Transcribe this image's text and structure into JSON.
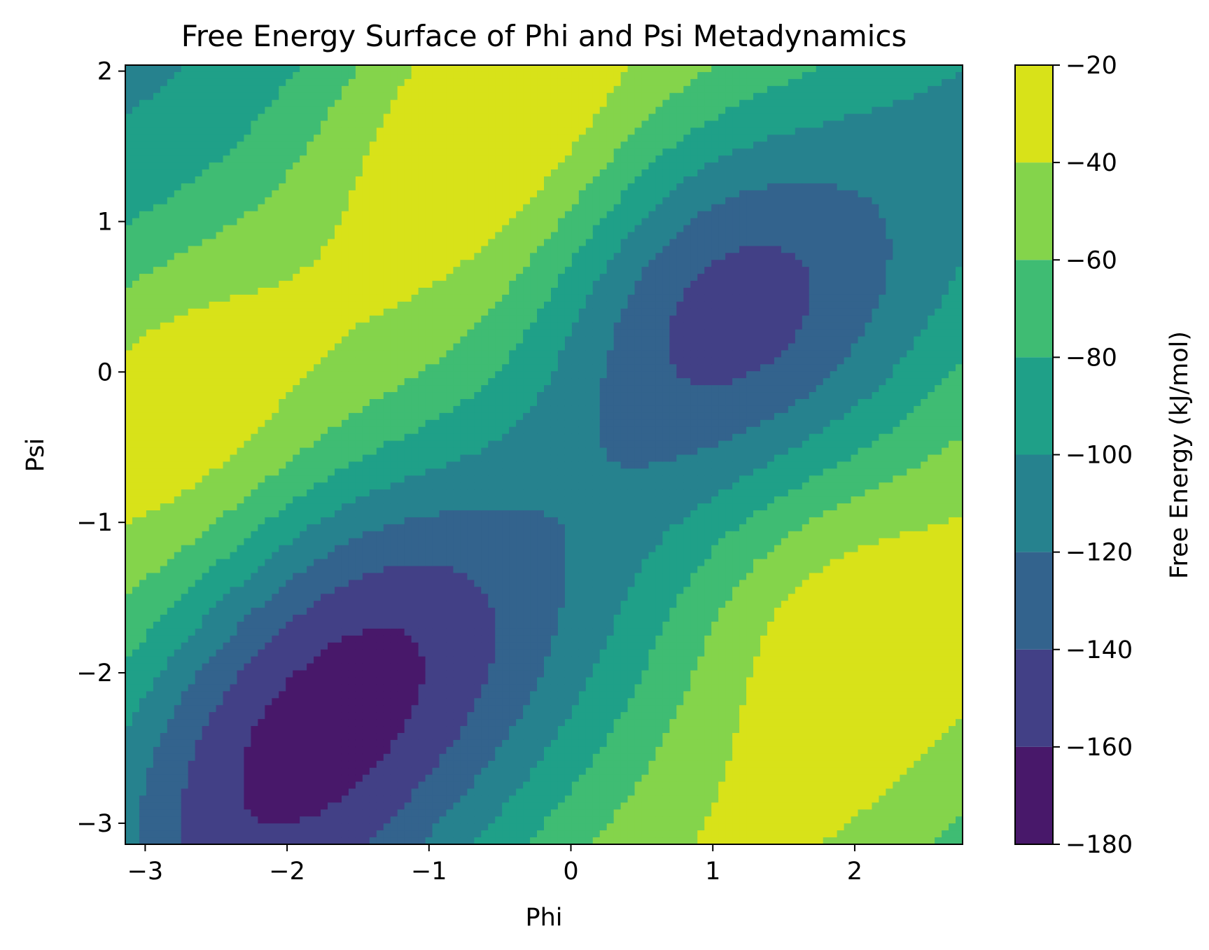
{
  "chart_data": {
    "type": "contour",
    "title": "Free Energy Surface of Phi and Psi Metadynamics",
    "xlabel": "Phi",
    "ylabel": "Psi",
    "xlim": [
      -3.14,
      2.76
    ],
    "ylim": [
      -3.14,
      2.04
    ],
    "xticks": [
      -3,
      -2,
      -1,
      0,
      1,
      2
    ],
    "xtick_labels": [
      "−3",
      "−2",
      "−1",
      "0",
      "1",
      "2"
    ],
    "yticks": [
      -3,
      -2,
      -1,
      0,
      1,
      2
    ],
    "ytick_labels": [
      "−3",
      "−2",
      "−1",
      "0",
      "1",
      "2"
    ],
    "colorbar": {
      "label": "Free Energy (kJ/mol)",
      "range": [
        -180,
        -20
      ],
      "ticks": [
        -180,
        -160,
        -140,
        -120,
        -100,
        -80,
        -60,
        -40,
        -20
      ],
      "tick_labels": [
        "−180",
        "−160",
        "−140",
        "−120",
        "−100",
        "−80",
        "−60",
        "−40",
        "−20"
      ]
    },
    "colormap": "viridis",
    "levels": [
      {
        "min": -180,
        "max": -160,
        "color": "#48186a"
      },
      {
        "min": -160,
        "max": -140,
        "color": "#424086"
      },
      {
        "min": -140,
        "max": -120,
        "color": "#33638d"
      },
      {
        "min": -120,
        "max": -100,
        "color": "#26828e"
      },
      {
        "min": -100,
        "max": -80,
        "color": "#1fa088"
      },
      {
        "min": -80,
        "max": -60,
        "color": "#3fbc73"
      },
      {
        "min": -60,
        "max": -40,
        "color": "#84d44b"
      },
      {
        "min": -40,
        "max": -20,
        "color": "#d8e219"
      }
    ],
    "features": [
      {
        "type": "minimum",
        "phi": -1.4,
        "psi": -1.6,
        "energy": -170
      },
      {
        "type": "minimum",
        "phi": -2.4,
        "psi": -2.65,
        "energy": -170
      },
      {
        "type": "minimum",
        "phi": 0.95,
        "psi": 0.55,
        "energy": -150
      },
      {
        "type": "maximum",
        "phi": -0.6,
        "psi": 1.75,
        "energy": -30
      },
      {
        "type": "maximum",
        "phi": 1.6,
        "psi": -1.4,
        "energy": -30
      },
      {
        "type": "maximum",
        "phi": -3.0,
        "psi": -0.1,
        "energy": -30
      }
    ]
  }
}
